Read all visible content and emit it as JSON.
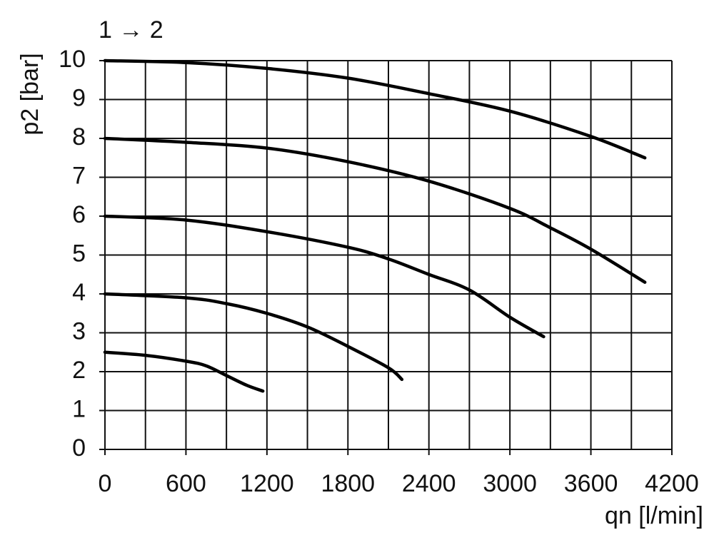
{
  "chart_data": {
    "type": "line",
    "title": "1 → 2",
    "xlabel": "qn [l/min]",
    "ylabel": "p2 [bar]",
    "xlim": [
      0,
      4200
    ],
    "xticks": [
      0,
      600,
      1200,
      1800,
      2400,
      3000,
      3600,
      4200
    ],
    "xminorticks": [
      300,
      900,
      1500,
      2100,
      2700,
      3300,
      3900
    ],
    "ylim": [
      0,
      10
    ],
    "yticks": [
      0,
      1,
      2,
      3,
      4,
      5,
      6,
      7,
      8,
      9,
      10
    ],
    "grid": true,
    "series": [
      {
        "color": "#000000",
        "x": [
          0,
          600,
          1200,
          1800,
          2400,
          3000,
          3600,
          4000
        ],
        "values": [
          10,
          9.95,
          9.8,
          9.55,
          9.15,
          8.7,
          8.05,
          7.5
        ]
      },
      {
        "color": "#000000",
        "x": [
          0,
          600,
          1200,
          1800,
          2400,
          3000,
          3300,
          3600,
          4000
        ],
        "values": [
          8,
          7.9,
          7.75,
          7.4,
          6.9,
          6.2,
          5.7,
          5.15,
          4.3
        ]
      },
      {
        "color": "#000000",
        "x": [
          0,
          600,
          1200,
          1800,
          2100,
          2400,
          2700,
          3000,
          3250
        ],
        "values": [
          6,
          5.9,
          5.6,
          5.2,
          4.9,
          4.5,
          4.1,
          3.4,
          2.9
        ]
      },
      {
        "color": "#000000",
        "x": [
          0,
          600,
          900,
          1200,
          1500,
          1800,
          2100,
          2200
        ],
        "values": [
          4,
          3.9,
          3.75,
          3.5,
          3.15,
          2.65,
          2.1,
          1.8
        ]
      },
      {
        "color": "#000000",
        "x": [
          0,
          300,
          600,
          750,
          900,
          1050,
          1170
        ],
        "values": [
          2.5,
          2.42,
          2.27,
          2.15,
          1.9,
          1.65,
          1.5
        ]
      }
    ]
  }
}
